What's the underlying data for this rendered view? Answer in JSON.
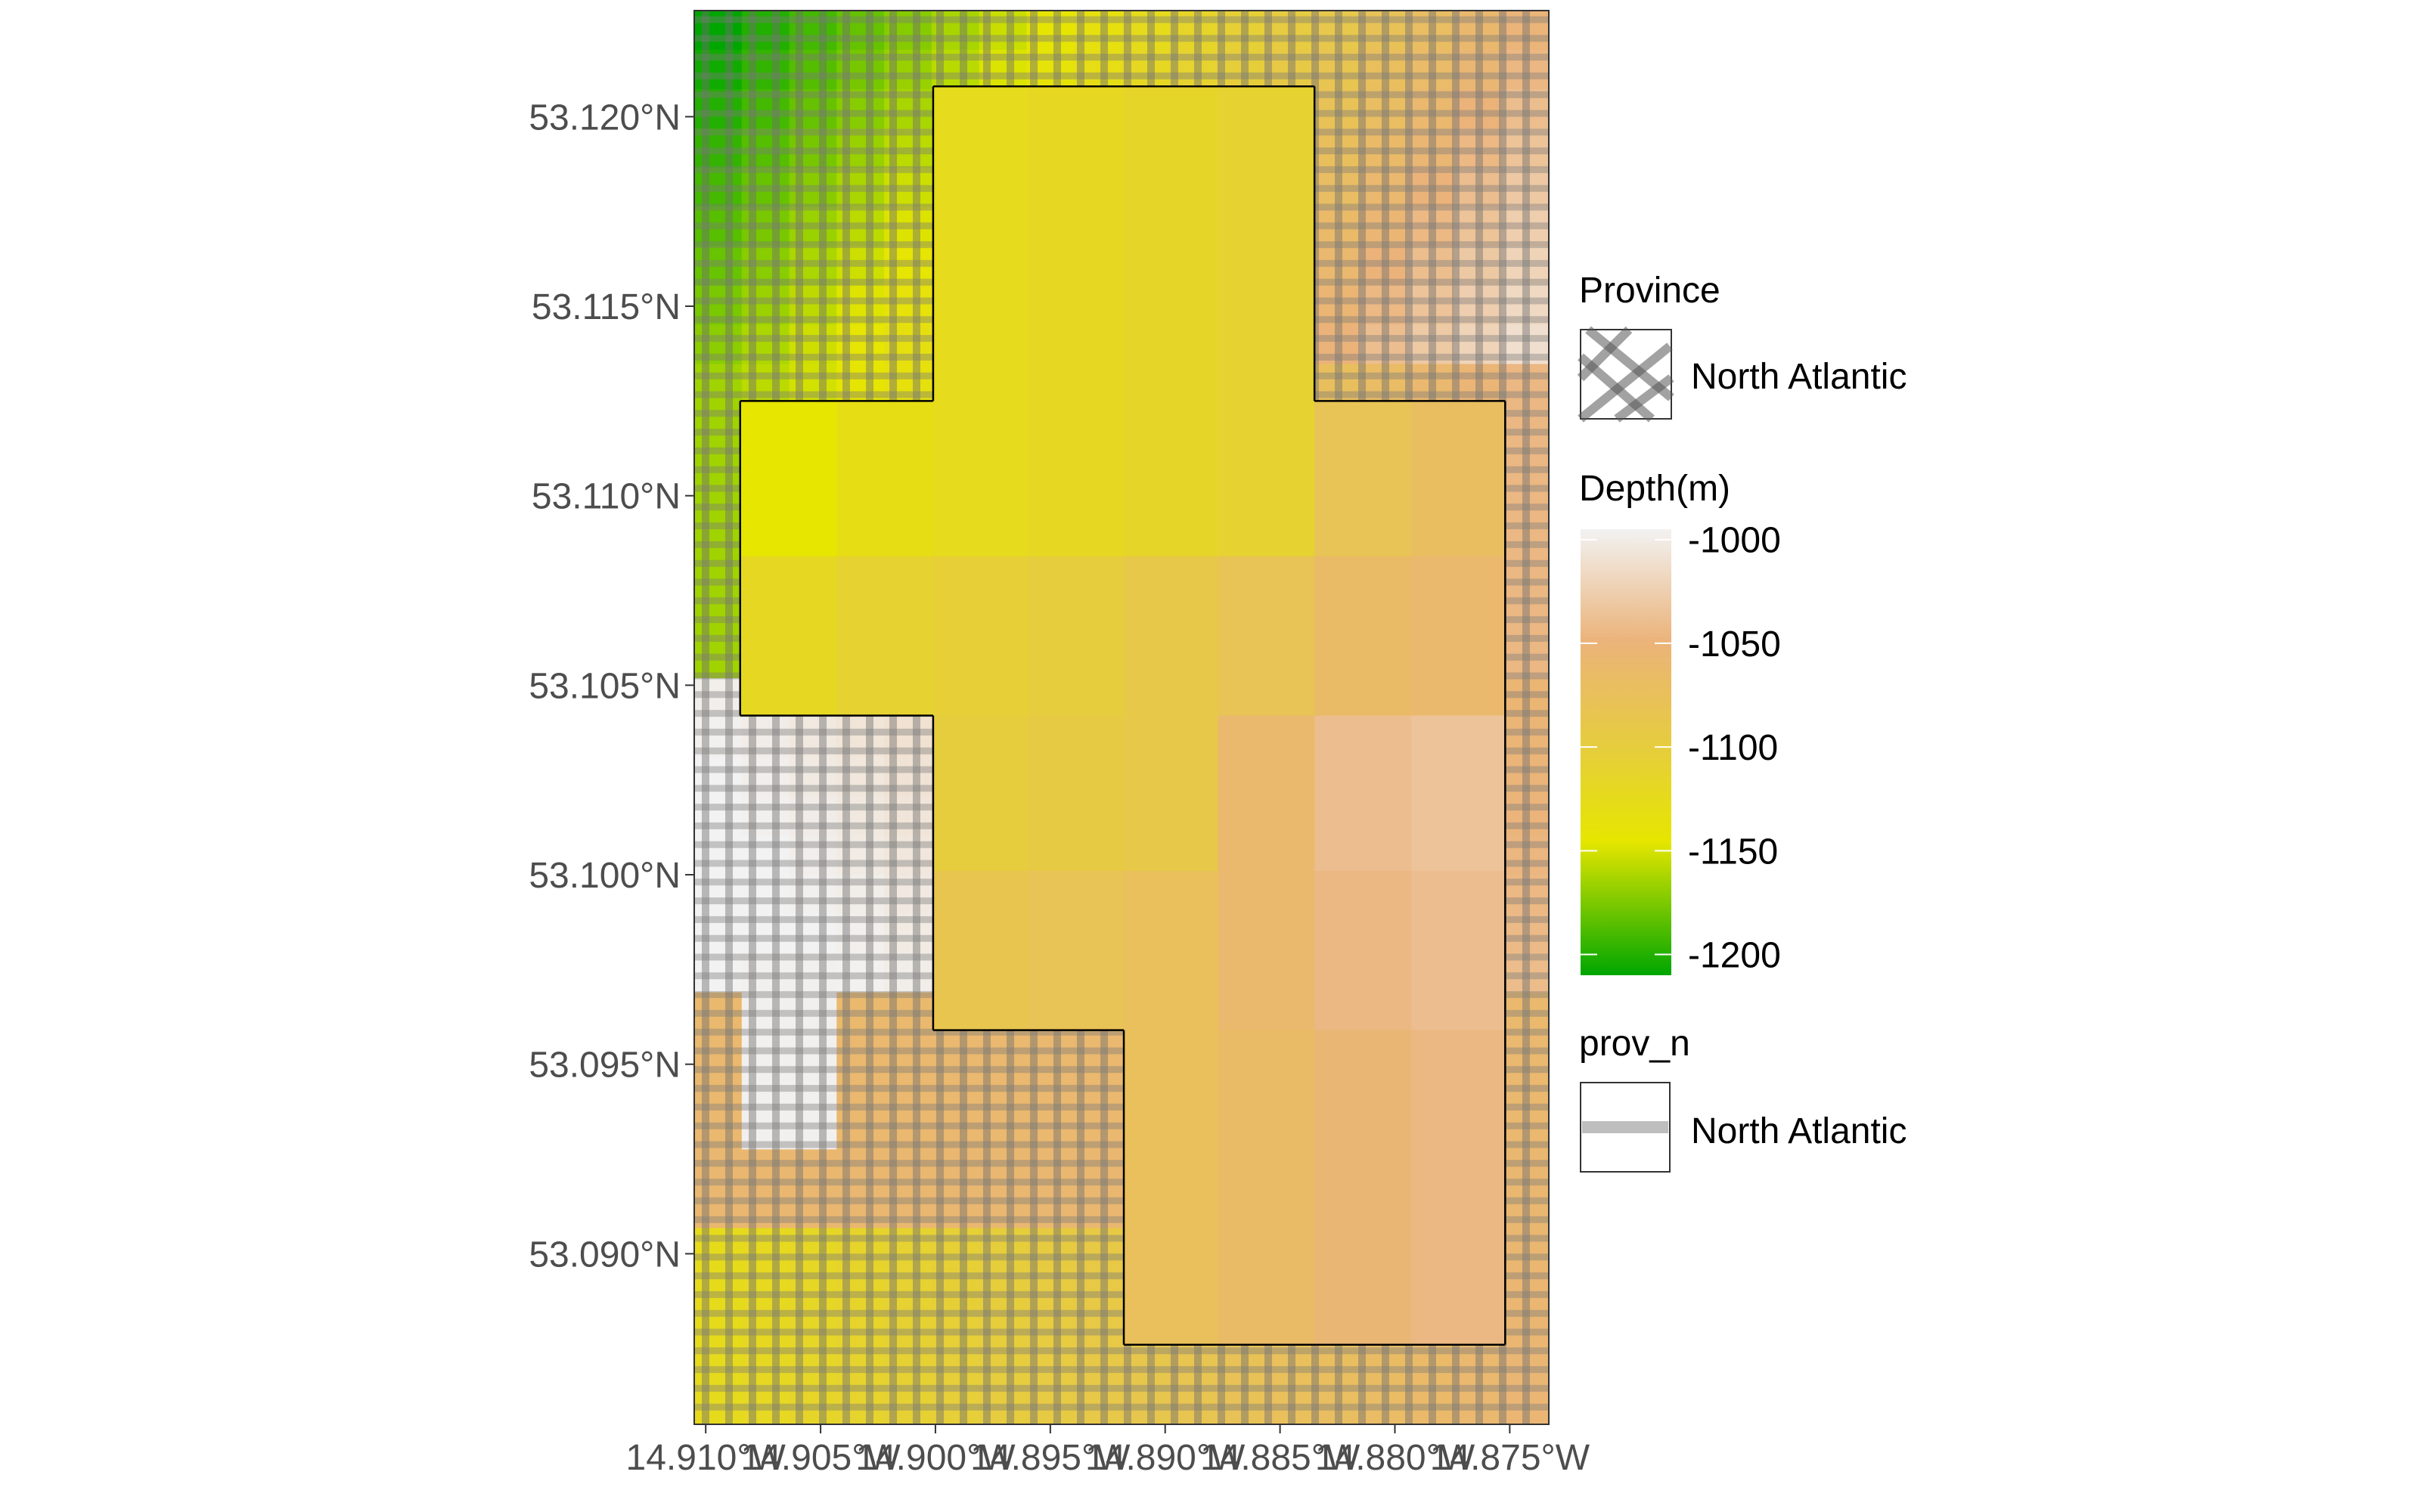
{
  "chart_data": {
    "type": "heatmap",
    "title": "",
    "xlabel": "",
    "ylabel": "",
    "x_ticks": [
      "14.910°W",
      "14.905°W",
      "14.900°W",
      "14.895°W",
      "14.890°W",
      "14.885°W",
      "14.880°W",
      "14.875°W"
    ],
    "y_ticks": [
      "53.120°N",
      "53.115°N",
      "53.110°N",
      "53.105°N",
      "53.100°N",
      "53.095°N",
      "53.090°N"
    ],
    "x_tick_values": [
      -14.91,
      -14.905,
      -14.9,
      -14.895,
      -14.89,
      -14.885,
      -14.88,
      -14.875
    ],
    "y_tick_values": [
      53.12,
      53.115,
      53.11,
      53.105,
      53.1,
      53.095,
      53.09
    ],
    "xlim": [
      -14.9105,
      -14.8733
    ],
    "ylim": [
      53.0855,
      53.1228
    ],
    "grid": false,
    "outline_cells": {
      "x_edges": [
        -14.9085,
        -14.9043,
        -14.9001,
        -14.896,
        -14.8918,
        -14.8877,
        -14.8835,
        -14.8793,
        -14.8752
      ],
      "y_edges": [
        53.1208,
        53.1167,
        53.1125,
        53.1084,
        53.1042,
        53.1001,
        53.0959,
        53.0917,
        53.0876
      ],
      "rows": [
        [
          null,
          null,
          -1125,
          -1120,
          -1115,
          -1110,
          null,
          null
        ],
        [
          null,
          null,
          -1125,
          -1120,
          -1115,
          -1110,
          null,
          null
        ],
        [
          -1145,
          -1130,
          -1125,
          -1120,
          -1115,
          -1110,
          -1080,
          -1070
        ],
        [
          -1120,
          -1110,
          -1105,
          -1100,
          -1090,
          -1080,
          -1065,
          -1060
        ],
        [
          null,
          null,
          -1100,
          -1095,
          -1090,
          -1060,
          -1040,
          -1035
        ],
        [
          null,
          null,
          -1085,
          -1080,
          -1075,
          -1060,
          -1045,
          -1040
        ],
        [
          null,
          null,
          null,
          null,
          -1075,
          -1065,
          -1055,
          -1045
        ],
        [
          null,
          null,
          null,
          null,
          -1075,
          -1065,
          -1055,
          -1045
        ]
      ]
    },
    "legend": {
      "position": "right",
      "province": {
        "title": "Province",
        "label": "North Atlantic"
      },
      "depth": {
        "title": "Depth(m)",
        "range": [
          -1210,
          -995
        ],
        "breaks": [
          -1000,
          -1050,
          -1100,
          -1150,
          -1200
        ],
        "break_labels": [
          "-1000",
          "-1050",
          "-1100",
          "-1150",
          "-1200"
        ],
        "colors": [
          "#f2f2f2",
          "#ebb37a",
          "#e6ce3a",
          "#e6e600",
          "#00a600"
        ]
      },
      "prov_n": {
        "title": "prov_n",
        "label": "North Atlantic"
      }
    }
  }
}
